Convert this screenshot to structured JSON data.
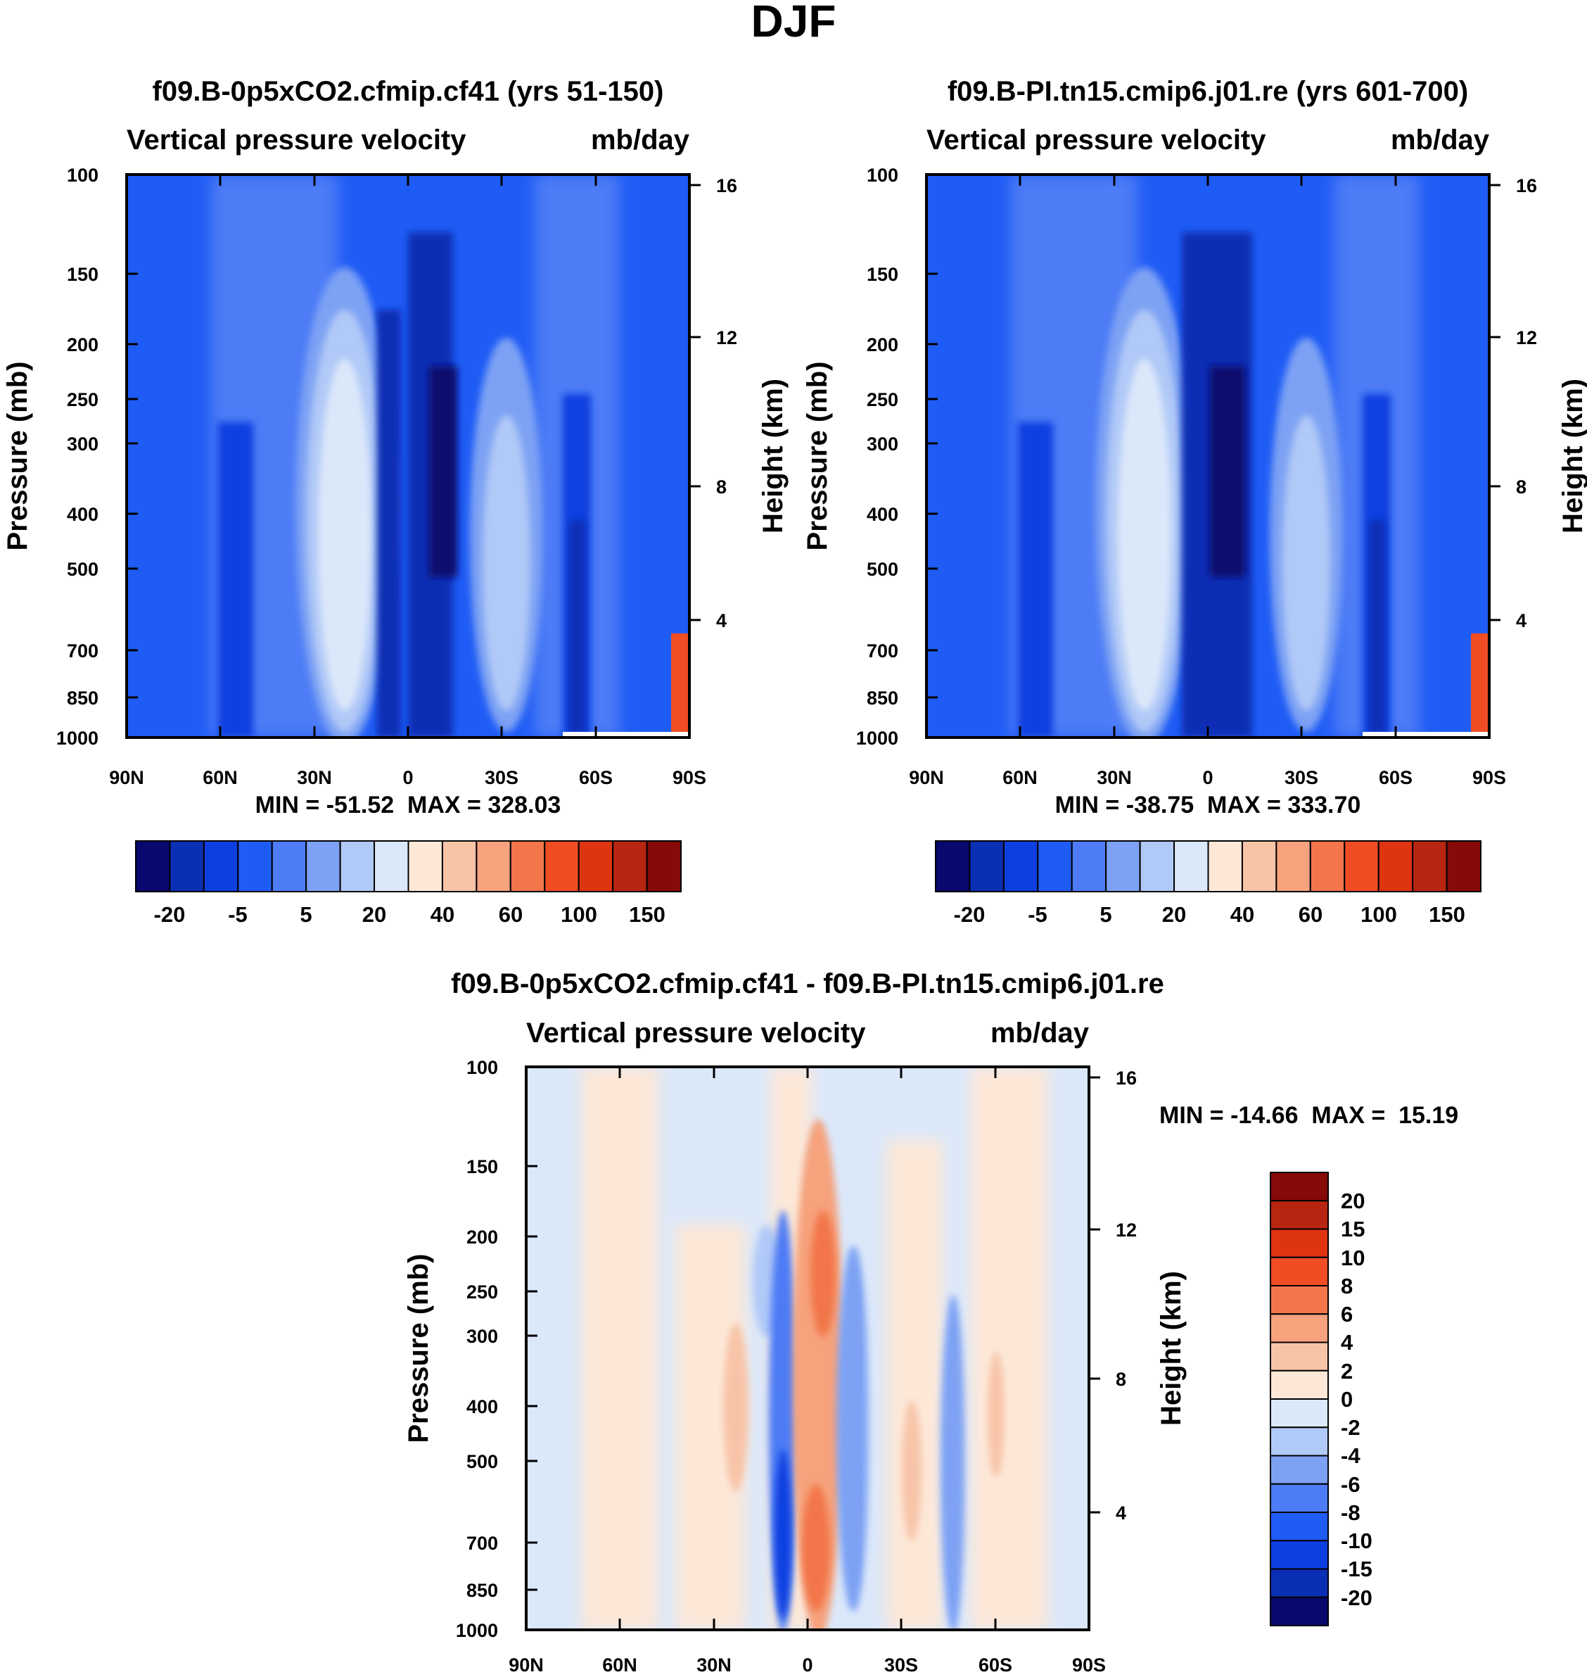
{
  "figure_title": "DJF",
  "colors": {
    "main_scale": [
      "#08086e",
      "#0a2fb4",
      "#0d3fe0",
      "#1f5cf5",
      "#4d7cf6",
      "#7da2f4",
      "#b1c9f7",
      "#dbe8fa",
      "#fde8d8",
      "#f8c4a8",
      "#f6a27c",
      "#f2764a",
      "#f04d24",
      "#de3410",
      "#b82510",
      "#860a08"
    ],
    "diff_scale": [
      "#08086e",
      "#0a2fb4",
      "#0d3fe0",
      "#1f5cf5",
      "#4d7cf6",
      "#7da2f4",
      "#b1c9f7",
      "#dbe8fa",
      "#fde8d8",
      "#f8c4a8",
      "#f6a27c",
      "#f2764a",
      "#f04d24",
      "#de3410",
      "#b82510",
      "#860a08"
    ]
  },
  "chart_data": [
    {
      "type": "heatmap",
      "id": "left",
      "title": "f09.B-0p5xCO2.cfmip.cf41 (yrs 51-150)",
      "subtitle_left": "Vertical pressure velocity",
      "subtitle_right": "mb/day",
      "ylabel": "Pressure (mb)",
      "ylabel_right": "Height (km)",
      "x_ticks": [
        "90N",
        "60N",
        "30N",
        "0",
        "30S",
        "60S",
        "90S"
      ],
      "y_ticks": [
        "100",
        "150",
        "200",
        "250",
        "300",
        "400",
        "500",
        "700",
        "850",
        "1000"
      ],
      "y_ticks_right": [
        "16",
        "12",
        "8",
        "4"
      ],
      "xlim": [
        90,
        -90
      ],
      "ylim": [
        1000,
        100
      ],
      "stats": "MIN = -51.52  MAX = 328.03",
      "colorbar_labels": [
        "-20",
        "-5",
        "5",
        "20",
        "40",
        "60",
        "100",
        "150"
      ],
      "features": [
        {
          "lat": 65,
          "value": -6,
          "kind": "column"
        },
        {
          "lat": 30,
          "value": 28,
          "kind": "ascent"
        },
        {
          "lat": 18,
          "value": 22,
          "kind": "column"
        },
        {
          "lat": 8,
          "value": -12,
          "kind": "column"
        },
        {
          "lat": 2,
          "value": 18,
          "kind": "column"
        },
        {
          "lat": -12,
          "value": -18,
          "kind": "column"
        },
        {
          "lat": -32,
          "value": 16,
          "kind": "column"
        },
        {
          "lat": -57,
          "value": -14,
          "kind": "column"
        }
      ]
    },
    {
      "type": "heatmap",
      "id": "right",
      "title": "f09.B-PI.tn15.cmip6.j01.re (yrs 601-700)",
      "subtitle_left": "Vertical pressure velocity",
      "subtitle_right": "mb/day",
      "ylabel": "Pressure (mb)",
      "ylabel_right": "Height (km)",
      "x_ticks": [
        "90N",
        "60N",
        "30N",
        "0",
        "30S",
        "60S",
        "90S"
      ],
      "y_ticks": [
        "100",
        "150",
        "200",
        "250",
        "300",
        "400",
        "500",
        "700",
        "850",
        "1000"
      ],
      "y_ticks_right": [
        "16",
        "12",
        "8",
        "4"
      ],
      "xlim": [
        90,
        -90
      ],
      "ylim": [
        1000,
        100
      ],
      "stats": "MIN = -38.75  MAX = 333.70",
      "colorbar_labels": [
        "-20",
        "-5",
        "5",
        "20",
        "40",
        "60",
        "100",
        "150"
      ],
      "features": [
        {
          "lat": 65,
          "value": -6,
          "kind": "column"
        },
        {
          "lat": 30,
          "value": 28,
          "kind": "ascent"
        },
        {
          "lat": 18,
          "value": 22,
          "kind": "column"
        },
        {
          "lat": 6,
          "value": -15,
          "kind": "column"
        },
        {
          "lat": -12,
          "value": -19,
          "kind": "column"
        },
        {
          "lat": -32,
          "value": 15,
          "kind": "column"
        },
        {
          "lat": -57,
          "value": -14,
          "kind": "column"
        }
      ]
    },
    {
      "type": "heatmap",
      "id": "diff",
      "title": "f09.B-0p5xCO2.cfmip.cf41 - f09.B-PI.tn15.cmip6.j01.re",
      "subtitle_left": "Vertical pressure velocity",
      "subtitle_right": "mb/day",
      "ylabel": "Pressure (mb)",
      "ylabel_right": "Height (km)",
      "x_ticks": [
        "90N",
        "60N",
        "30N",
        "0",
        "30S",
        "60S",
        "90S"
      ],
      "y_ticks": [
        "100",
        "150",
        "200",
        "250",
        "300",
        "400",
        "500",
        "700",
        "850",
        "1000"
      ],
      "y_ticks_right": [
        "16",
        "12",
        "8",
        "4"
      ],
      "xlim": [
        90,
        -90
      ],
      "ylim": [
        1000,
        100
      ],
      "stats": "MIN = -14.66  MAX =  15.19",
      "colorbar_labels": [
        "20",
        "15",
        "10",
        "8",
        "6",
        "4",
        "2",
        "0",
        "-2",
        "-4",
        "-6",
        "-8",
        "-10",
        "-15",
        "-20"
      ],
      "features": [
        {
          "lat": 70,
          "value": 1,
          "kind": "band"
        },
        {
          "lat": 45,
          "value": -1,
          "kind": "band"
        },
        {
          "lat": 22,
          "value": 3,
          "kind": "column"
        },
        {
          "lat": 7,
          "value": -9,
          "kind": "column"
        },
        {
          "lat": 0,
          "value": 7,
          "kind": "column"
        },
        {
          "lat": -10,
          "value": -5,
          "kind": "column"
        },
        {
          "lat": -30,
          "value": 2,
          "kind": "column"
        },
        {
          "lat": -45,
          "value": -4,
          "kind": "column"
        },
        {
          "lat": -60,
          "value": 2,
          "kind": "column"
        }
      ]
    }
  ]
}
